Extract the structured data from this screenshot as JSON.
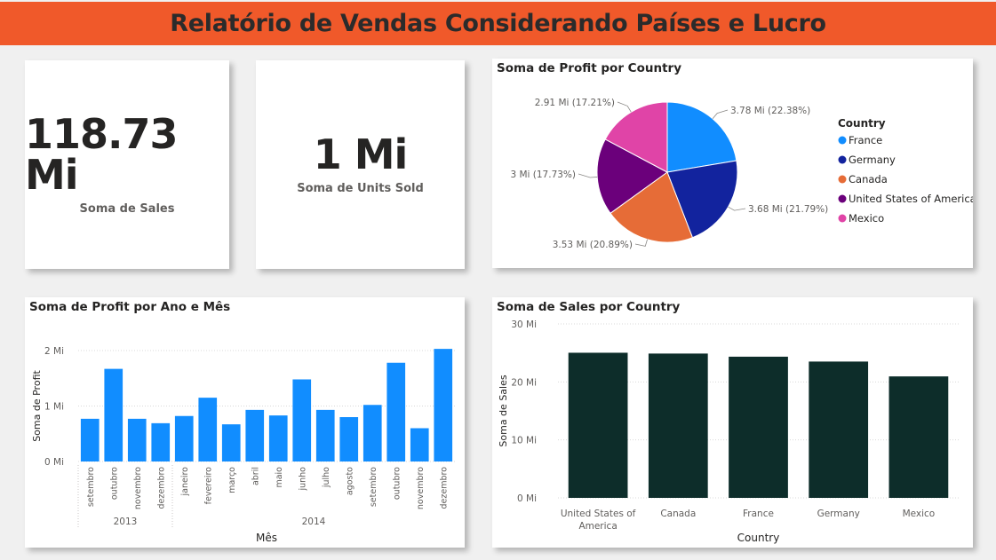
{
  "header": {
    "title": "Relatório de Vendas Considerando Países e Lucro"
  },
  "kpis": {
    "sales": {
      "value": "118.73 Mi",
      "label": "Soma de Sales"
    },
    "units": {
      "value": "1 Mi",
      "label": "Soma de Units Sold"
    }
  },
  "colors": {
    "header_bg": "#f0592a",
    "line_bar": "#118dff",
    "country_bar": "#0d2d2a"
  },
  "chart_data": [
    {
      "id": "profit_by_country",
      "type": "pie",
      "title": "Soma de Profit por Country",
      "legend_title": "Country",
      "legend_position": "right",
      "slices": [
        {
          "name": "France",
          "value": 3.78,
          "label": "3.78 Mi (22.38%)",
          "color": "#118dff"
        },
        {
          "name": "Germany",
          "value": 3.68,
          "label": "3.68 Mi (21.79%)",
          "color": "#12239e"
        },
        {
          "name": "Canada",
          "value": 3.53,
          "label": "3.53 Mi (20.89%)",
          "color": "#e66c37"
        },
        {
          "name": "United States of America",
          "value": 3.0,
          "label": "3 Mi (17.73%)",
          "color": "#6b007b"
        },
        {
          "name": "Mexico",
          "value": 2.91,
          "label": "2.91 Mi (17.21%)",
          "color": "#e044a7"
        }
      ]
    },
    {
      "id": "profit_by_month",
      "type": "bar",
      "title": "Soma de Profit por Ano e Mês",
      "xlabel": "Mês",
      "ylabel": "Soma de Profit",
      "ylim": [
        0,
        2
      ],
      "yticks": [
        "0 Mi",
        "1 Mi",
        "2 Mi"
      ],
      "grid": true,
      "categories": [
        "setembro",
        "outubro",
        "novembro",
        "dezembro",
        "janeiro",
        "fevereiro",
        "março",
        "abril",
        "maio",
        "junho",
        "julho",
        "agosto",
        "setembro",
        "outubro",
        "novembro",
        "dezembro"
      ],
      "groups": [
        {
          "label": "2013",
          "count": 4
        },
        {
          "label": "2014",
          "count": 12
        }
      ],
      "values": [
        0.77,
        1.67,
        0.77,
        0.69,
        0.82,
        1.15,
        0.67,
        0.93,
        0.83,
        1.48,
        0.93,
        0.8,
        1.02,
        1.78,
        0.6,
        2.03
      ]
    },
    {
      "id": "sales_by_country",
      "type": "bar",
      "title": "Soma de Sales por Country",
      "xlabel": "Country",
      "ylabel": "Soma de Sales",
      "ylim": [
        0,
        30
      ],
      "yticks": [
        "0 Mi",
        "10 Mi",
        "20 Mi",
        "30 Mi"
      ],
      "grid": true,
      "categories": [
        "United States of America",
        "Canada",
        "France",
        "Germany",
        "Mexico"
      ],
      "values": [
        25.03,
        24.89,
        24.35,
        23.51,
        20.95
      ]
    }
  ]
}
